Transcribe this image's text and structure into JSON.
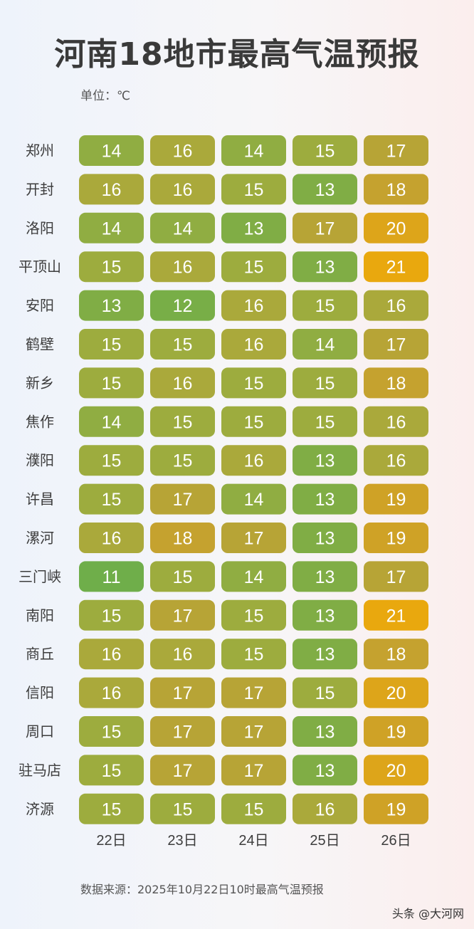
{
  "chart_data": {
    "type": "heatmap",
    "title": "河南18地市最高气温预报",
    "unit_label": "单位：℃",
    "rows": [
      "郑州",
      "开封",
      "洛阳",
      "平顶山",
      "安阳",
      "鹤壁",
      "新乡",
      "焦作",
      "濮阳",
      "许昌",
      "漯河",
      "三门峡",
      "南阳",
      "商丘",
      "信阳",
      "周口",
      "驻马店",
      "济源"
    ],
    "columns": [
      "22日",
      "23日",
      "24日",
      "25日",
      "26日"
    ],
    "values": [
      [
        14,
        16,
        14,
        15,
        17
      ],
      [
        16,
        16,
        15,
        13,
        18
      ],
      [
        14,
        14,
        13,
        17,
        20
      ],
      [
        15,
        16,
        15,
        13,
        21
      ],
      [
        13,
        12,
        16,
        15,
        16
      ],
      [
        15,
        15,
        16,
        14,
        17
      ],
      [
        15,
        16,
        15,
        15,
        18
      ],
      [
        14,
        15,
        15,
        15,
        16
      ],
      [
        15,
        15,
        16,
        13,
        16
      ],
      [
        15,
        17,
        14,
        13,
        19
      ],
      [
        16,
        18,
        17,
        13,
        19
      ],
      [
        11,
        15,
        14,
        13,
        17
      ],
      [
        15,
        17,
        15,
        13,
        21
      ],
      [
        16,
        16,
        15,
        13,
        18
      ],
      [
        16,
        17,
        17,
        15,
        20
      ],
      [
        15,
        17,
        17,
        13,
        19
      ],
      [
        15,
        17,
        17,
        13,
        20
      ],
      [
        15,
        15,
        15,
        16,
        19
      ]
    ],
    "color_scale": {
      "11": "#6fae4a",
      "12": "#78ae47",
      "13": "#80ad45",
      "14": "#90ad42",
      "15": "#9dac3e",
      "16": "#aaa93b",
      "17": "#b7a436",
      "18": "#c5a22f",
      "19": "#cfa226",
      "20": "#dda51a",
      "21": "#e9a80e"
    }
  },
  "footer": {
    "source": "数据来源：2025年10月22日10时最高气温预报",
    "watermark": "头条 @大河网"
  }
}
